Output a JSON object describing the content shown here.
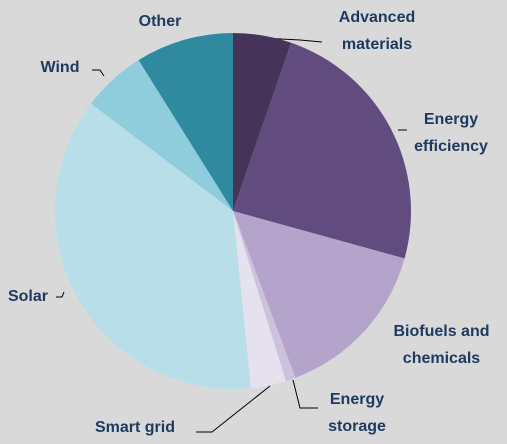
{
  "chart_data": {
    "type": "pie",
    "categories": [
      "Advanced materials",
      "Energy efficiency",
      "Biofuels and chemicals",
      "Energy storage",
      "Smart grid",
      "Solar",
      "Wind",
      "Other"
    ],
    "values": [
      5.3,
      24,
      15,
      0.9,
      3.2,
      36.9,
      5.8,
      8.9
    ],
    "colors": [
      "#46335a",
      "#624b7e",
      "#b4a3cb",
      "#cdc2dd",
      "#e6e1ef",
      "#b8dfe9",
      "#8fcddc",
      "#2f8aa0"
    ]
  }
}
